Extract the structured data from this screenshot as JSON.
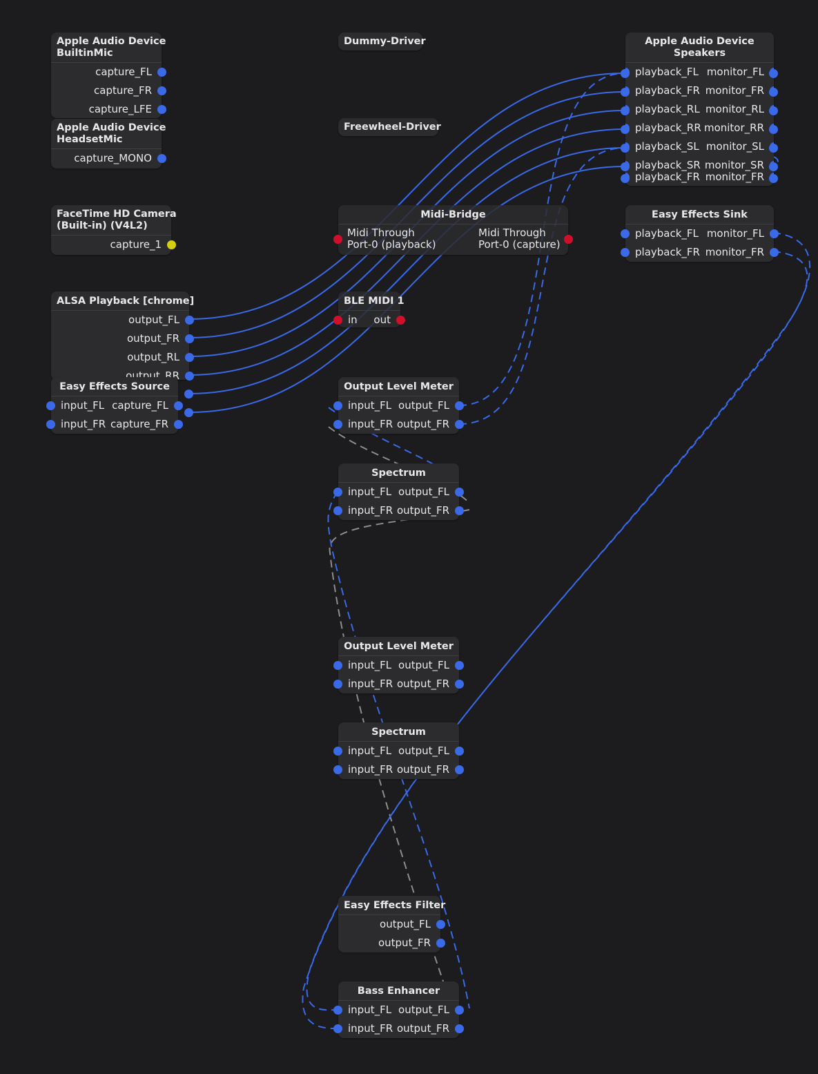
{
  "colors": {
    "background": "#1c1c1e",
    "node": "#2c2c2e",
    "audio_port": "#3a6ae8",
    "midi_port": "#d0102b",
    "video_port": "#d4d010",
    "link_gray": "#8e8e8e"
  },
  "nodes": {
    "builtin_mic": {
      "title": "Apple Audio Device\nBuiltinMic",
      "ports": [
        "capture_FL",
        "capture_FR",
        "capture_LFE"
      ]
    },
    "headset_mic": {
      "title": "Apple Audio Device\nHeadsetMic",
      "ports": [
        "capture_MONO"
      ]
    },
    "facetime": {
      "title": "FaceTime HD Camera\n(Built-in) (V4L2)",
      "ports": [
        "capture_1"
      ]
    },
    "alsa_playback": {
      "title": "ALSA Playback [chrome]",
      "ports": [
        "output_FL",
        "output_FR",
        "output_RL",
        "output_RR"
      ]
    },
    "ee_source": {
      "title": "Easy Effects Source",
      "inputs": [
        "input_FL",
        "input_FR"
      ],
      "outputs": [
        "capture_FL",
        "capture_FR"
      ]
    },
    "dummy_driver": {
      "title": "Dummy-Driver"
    },
    "freewheel_driver": {
      "title": "Freewheel-Driver"
    },
    "midi_bridge": {
      "title": "Midi-Bridge",
      "input": "Midi Through\nPort-0 (playback)",
      "output": "Midi Through\nPort-0 (capture)"
    },
    "ble_midi": {
      "title": "BLE MIDI 1",
      "input": "in",
      "output": "out"
    },
    "olm1": {
      "title": "Output Level Meter",
      "inputs": [
        "input_FL",
        "input_FR"
      ],
      "outputs": [
        "output_FL",
        "output_FR"
      ]
    },
    "spectrum1": {
      "title": "Spectrum",
      "inputs": [
        "input_FL",
        "input_FR"
      ],
      "outputs": [
        "output_FL",
        "output_FR"
      ]
    },
    "olm2": {
      "title": "Output Level Meter",
      "inputs": [
        "input_FL",
        "input_FR"
      ],
      "outputs": [
        "output_FL",
        "output_FR"
      ]
    },
    "spectrum2": {
      "title": "Spectrum",
      "inputs": [
        "input_FL",
        "input_FR"
      ],
      "outputs": [
        "output_FL",
        "output_FR"
      ]
    },
    "ee_filter": {
      "title": "Easy Effects Filter",
      "outputs": [
        "output_FL",
        "output_FR"
      ]
    },
    "bass_enhancer": {
      "title": "Bass Enhancer",
      "inputs": [
        "input_FL",
        "input_FR"
      ],
      "outputs": [
        "output_FL",
        "output_FR"
      ]
    },
    "speakers": {
      "title": "Apple Audio Device\nSpeakers",
      "inputs": [
        "playback_FL",
        "playback_FR",
        "playback_RL",
        "playback_RR",
        "playback_SL",
        "playback_SR",
        "playback_FR"
      ],
      "outputs": [
        "monitor_FL",
        "monitor_FR",
        "monitor_RL",
        "monitor_RR",
        "monitor_SL",
        "monitor_SR",
        "monitor_FR"
      ]
    },
    "ee_sink": {
      "title": "Easy Effects Sink",
      "inputs": [
        "playback_FL",
        "playback_FR"
      ],
      "outputs": [
        "monitor_FL",
        "monitor_FR"
      ]
    }
  }
}
